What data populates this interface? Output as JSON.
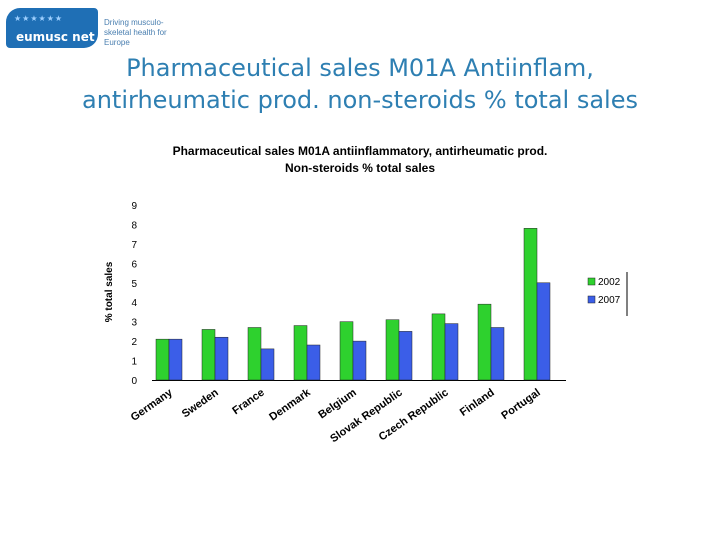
{
  "logo": {
    "name": "eumusc net",
    "tagline": "Driving musculo-skeletal health for Europe"
  },
  "slide": {
    "title_line1": "Pharmaceutical sales M01A Antiinflam,",
    "title_line2": "antirheumatic prod. non-steroids % total sales"
  },
  "colors": {
    "series_2002": "#2ed12e",
    "series_2007": "#3b5ee8",
    "title": "#2e7fb2"
  },
  "chart_data": {
    "type": "bar",
    "title": "Pharmaceutical sales M01A antiinflammatory, antirheumatic prod.",
    "subtitle": "Non-steroids % total sales",
    "ylabel": "% total sales",
    "xlabel": "",
    "ylim": [
      0,
      9
    ],
    "yticks": [
      0,
      1,
      2,
      3,
      4,
      5,
      6,
      7,
      8,
      9
    ],
    "grid": false,
    "legend_position": "right",
    "categories": [
      "Germany",
      "Sweden",
      "France",
      "Denmark",
      "Belgium",
      "Slovak Republic",
      "Czech Republic",
      "Finland",
      "Portugal"
    ],
    "series": [
      {
        "name": "2002",
        "color": "#2ed12e",
        "values": [
          2.1,
          2.6,
          2.7,
          2.8,
          3.0,
          3.1,
          3.4,
          3.9,
          7.8
        ]
      },
      {
        "name": "2007",
        "color": "#3b5ee8",
        "values": [
          2.1,
          2.2,
          1.6,
          1.8,
          2.0,
          2.5,
          2.9,
          2.7,
          5.0
        ]
      }
    ]
  }
}
